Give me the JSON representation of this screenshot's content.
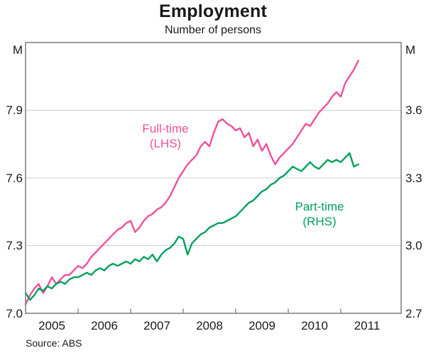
{
  "chart_data": {
    "type": "line",
    "title": "Employment",
    "subtitle": "Number of persons",
    "source": "Source: ABS",
    "units": {
      "left": "M",
      "right": "M"
    },
    "x_axis": {
      "tick_labels": [
        "2005",
        "2006",
        "2007",
        "2008",
        "2009",
        "2010",
        "2011"
      ],
      "x_start_year": 2005.0,
      "x_step_years": 0.0833,
      "note": "monthly observations from Jan 2005 to May 2011"
    },
    "ylim_left": [
      7.0,
      8.2
    ],
    "ylim_right": [
      2.7,
      3.9
    ],
    "left_axis_tick_labels": [
      "7.9",
      "7.6",
      "7.3",
      "7.0"
    ],
    "right_axis_tick_labels": [
      "3.6",
      "3.3",
      "3.0",
      "2.7"
    ],
    "gridline_values_left": [
      7.9,
      7.6,
      7.3
    ],
    "grid": "horizontal gridlines only, boxed axes, inner ticks on bottom axis at year boundaries",
    "legend_position": "inline annotations next to each line",
    "series": [
      {
        "name": "Full-time",
        "axis": "LHS",
        "label": "Full-time",
        "label2": "(LHS)",
        "color": "#f0509b",
        "values": [
          7.04,
          7.08,
          7.11,
          7.13,
          7.09,
          7.12,
          7.16,
          7.13,
          7.15,
          7.17,
          7.17,
          7.19,
          7.21,
          7.2,
          7.22,
          7.25,
          7.27,
          7.29,
          7.31,
          7.33,
          7.35,
          7.37,
          7.38,
          7.4,
          7.41,
          7.36,
          7.38,
          7.41,
          7.43,
          7.44,
          7.46,
          7.47,
          7.49,
          7.52,
          7.56,
          7.6,
          7.63,
          7.66,
          7.68,
          7.7,
          7.74,
          7.76,
          7.74,
          7.8,
          7.85,
          7.86,
          7.84,
          7.83,
          7.81,
          7.82,
          7.78,
          7.8,
          7.74,
          7.77,
          7.72,
          7.75,
          7.7,
          7.66,
          7.69,
          7.71,
          7.73,
          7.75,
          7.78,
          7.81,
          7.84,
          7.83,
          7.86,
          7.89,
          7.91,
          7.93,
          7.96,
          7.98,
          7.96,
          8.02,
          8.05,
          8.08,
          8.12
        ]
      },
      {
        "name": "Part-time",
        "axis": "RHS",
        "label": "Part-time",
        "label2": "(RHS)",
        "color": "#00a15d",
        "values": [
          2.79,
          2.76,
          2.78,
          2.81,
          2.8,
          2.82,
          2.81,
          2.83,
          2.84,
          2.83,
          2.85,
          2.86,
          2.86,
          2.87,
          2.88,
          2.87,
          2.89,
          2.9,
          2.89,
          2.91,
          2.92,
          2.91,
          2.92,
          2.93,
          2.92,
          2.94,
          2.93,
          2.95,
          2.94,
          2.96,
          2.93,
          2.96,
          2.98,
          2.99,
          3.01,
          3.04,
          3.03,
          2.96,
          3.01,
          3.03,
          3.05,
          3.06,
          3.08,
          3.09,
          3.1,
          3.1,
          3.11,
          3.12,
          3.13,
          3.15,
          3.17,
          3.19,
          3.2,
          3.22,
          3.24,
          3.25,
          3.27,
          3.28,
          3.3,
          3.31,
          3.33,
          3.35,
          3.34,
          3.33,
          3.35,
          3.37,
          3.35,
          3.34,
          3.36,
          3.38,
          3.37,
          3.38,
          3.37,
          3.39,
          3.41,
          3.35,
          3.36
        ]
      }
    ],
    "colors": {
      "axis_box": "#848484",
      "gridline": "#cfcfcf",
      "text": "#1a1a1a"
    }
  }
}
